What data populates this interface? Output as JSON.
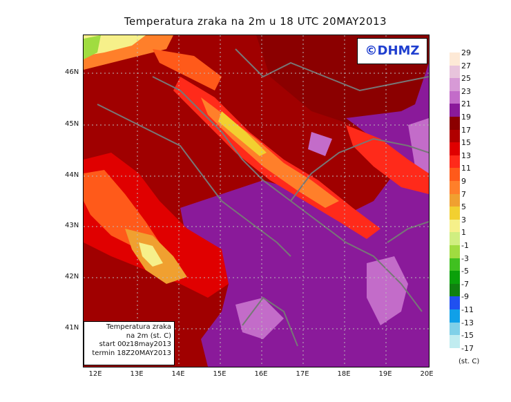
{
  "title": "Temperatura zraka na 2m u 18 UTC 20MAY2013",
  "logo_text": "©DHMZ",
  "info_box": {
    "line1": "Temperatura zraka",
    "line2": "na 2m (st. C)",
    "line3": "start 00z18may2013",
    "line4": "termin 18Z20MAY2013"
  },
  "lat_labels": [
    "46N",
    "45N",
    "44N",
    "43N",
    "42N",
    "41N"
  ],
  "lon_labels": [
    "12E",
    "13E",
    "14E",
    "15E",
    "16E",
    "17E",
    "18E",
    "19E",
    "20E"
  ],
  "legend": {
    "unit": "(st. C)",
    "labels": [
      "29",
      "27",
      "25",
      "23",
      "21",
      "19",
      "17",
      "15",
      "13",
      "11",
      "9",
      "7",
      "5",
      "3",
      "1",
      "-1",
      "-3",
      "-5",
      "-7",
      "-9",
      "-11",
      "-13",
      "-15",
      "-17"
    ],
    "colors": [
      "#fde9d6",
      "#e8c4dc",
      "#d79ad6",
      "#c36cc9",
      "#8a1a9a",
      "#8b0000",
      "#b00000",
      "#e00000",
      "#ff2a1a",
      "#ff5a1a",
      "#ff7f2a",
      "#f0a030",
      "#f2d030",
      "#f6f08a",
      "#d0ee80",
      "#a0dc40",
      "#40c020",
      "#0aa00a",
      "#108010",
      "#2050f0",
      "#10a0e8",
      "#80d0e8",
      "#c0ecf0",
      "#e8fafa"
    ]
  }
}
